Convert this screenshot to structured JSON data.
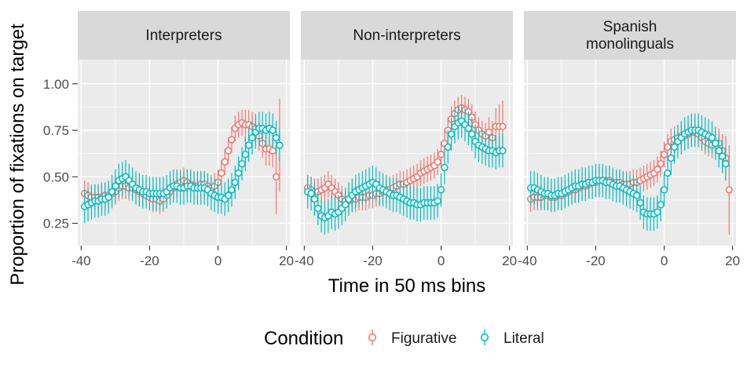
{
  "chart_data": {
    "type": "scatter",
    "facets": [
      "Interpreters",
      "Non-interpreters",
      "Spanish\nmonolinguals"
    ],
    "xlabel": "Time in 50 ms bins",
    "ylabel": "Proportion of fixations on target",
    "xlim": [
      -41,
      21
    ],
    "ylim": [
      0.13,
      1.13
    ],
    "xticks": [
      -40,
      -20,
      0,
      20
    ],
    "yticks": [
      0.25,
      0.5,
      0.75,
      1.0
    ],
    "ytick_labels": [
      "0.25",
      "0.50",
      "0.75",
      "1.00"
    ],
    "grid": true,
    "legend": {
      "title": "Condition",
      "position": "bottom",
      "entries": [
        "Figurative",
        "Literal"
      ]
    },
    "colors": {
      "Figurative": "#F8766D",
      "Literal": "#00BFC4"
    },
    "series": [
      {
        "name": "Figurative",
        "facet": "Interpreters",
        "x": [
          -39,
          -38,
          -37,
          -36,
          -35,
          -34,
          -33,
          -32,
          -31,
          -30,
          -29,
          -28,
          -27,
          -26,
          -25,
          -24,
          -23,
          -22,
          -21,
          -20,
          -19,
          -18,
          -17,
          -16,
          -15,
          -14,
          -13,
          -12,
          -11,
          -10,
          -9,
          -8,
          -7,
          -6,
          -5,
          -4,
          -3,
          -2,
          -1,
          0,
          1,
          2,
          3,
          4,
          5,
          6,
          7,
          8,
          9,
          10,
          11,
          12,
          13,
          14,
          15,
          16,
          17,
          18
        ],
        "y": [
          0.41,
          0.4,
          0.39,
          0.39,
          0.39,
          0.39,
          0.4,
          0.4,
          0.41,
          0.42,
          0.44,
          0.45,
          0.45,
          0.44,
          0.44,
          0.43,
          0.42,
          0.41,
          0.4,
          0.39,
          0.38,
          0.38,
          0.37,
          0.38,
          0.4,
          0.42,
          0.44,
          0.46,
          0.47,
          0.48,
          0.47,
          0.46,
          0.45,
          0.45,
          0.46,
          0.46,
          0.45,
          0.44,
          0.45,
          0.47,
          0.52,
          0.58,
          0.64,
          0.7,
          0.76,
          0.78,
          0.79,
          0.78,
          0.78,
          0.77,
          0.76,
          0.72,
          0.68,
          0.65,
          0.65,
          0.64,
          0.5,
          0.67
        ],
        "err": [
          0.07,
          0.07,
          0.07,
          0.07,
          0.07,
          0.07,
          0.07,
          0.07,
          0.07,
          0.07,
          0.07,
          0.07,
          0.07,
          0.07,
          0.07,
          0.07,
          0.07,
          0.07,
          0.07,
          0.07,
          0.07,
          0.07,
          0.07,
          0.07,
          0.07,
          0.07,
          0.07,
          0.07,
          0.07,
          0.07,
          0.07,
          0.07,
          0.07,
          0.07,
          0.07,
          0.07,
          0.07,
          0.07,
          0.07,
          0.07,
          0.07,
          0.07,
          0.07,
          0.07,
          0.07,
          0.07,
          0.07,
          0.08,
          0.08,
          0.08,
          0.08,
          0.08,
          0.08,
          0.09,
          0.09,
          0.09,
          0.2,
          0.25
        ]
      },
      {
        "name": "Literal",
        "facet": "Interpreters",
        "x": [
          -39,
          -38,
          -37,
          -36,
          -35,
          -34,
          -33,
          -32,
          -31,
          -30,
          -29,
          -28,
          -27,
          -26,
          -25,
          -24,
          -23,
          -22,
          -21,
          -20,
          -19,
          -18,
          -17,
          -16,
          -15,
          -14,
          -13,
          -12,
          -11,
          -10,
          -9,
          -8,
          -7,
          -6,
          -5,
          -4,
          -3,
          -2,
          -1,
          0,
          1,
          2,
          3,
          4,
          5,
          6,
          7,
          8,
          9,
          10,
          11,
          12,
          13,
          14,
          15,
          16,
          17,
          18
        ],
        "y": [
          0.34,
          0.35,
          0.36,
          0.37,
          0.37,
          0.38,
          0.38,
          0.39,
          0.42,
          0.45,
          0.48,
          0.49,
          0.5,
          0.48,
          0.46,
          0.44,
          0.43,
          0.42,
          0.42,
          0.41,
          0.41,
          0.41,
          0.41,
          0.41,
          0.42,
          0.44,
          0.45,
          0.45,
          0.44,
          0.44,
          0.45,
          0.45,
          0.44,
          0.44,
          0.44,
          0.44,
          0.43,
          0.41,
          0.4,
          0.39,
          0.39,
          0.38,
          0.4,
          0.43,
          0.47,
          0.52,
          0.57,
          0.62,
          0.67,
          0.71,
          0.74,
          0.76,
          0.76,
          0.75,
          0.76,
          0.75,
          0.71,
          0.67
        ],
        "err": [
          0.09,
          0.09,
          0.09,
          0.09,
          0.09,
          0.09,
          0.09,
          0.09,
          0.09,
          0.09,
          0.09,
          0.09,
          0.09,
          0.09,
          0.09,
          0.09,
          0.09,
          0.09,
          0.09,
          0.09,
          0.09,
          0.09,
          0.09,
          0.09,
          0.09,
          0.09,
          0.09,
          0.09,
          0.09,
          0.09,
          0.09,
          0.09,
          0.09,
          0.09,
          0.09,
          0.09,
          0.09,
          0.09,
          0.09,
          0.09,
          0.09,
          0.09,
          0.09,
          0.09,
          0.09,
          0.09,
          0.09,
          0.09,
          0.09,
          0.09,
          0.09,
          0.09,
          0.09,
          0.09,
          0.09,
          0.09,
          0.09,
          0.09
        ]
      },
      {
        "name": "Figurative",
        "facet": "Non-interpreters",
        "x": [
          -39,
          -38,
          -37,
          -36,
          -35,
          -34,
          -33,
          -32,
          -31,
          -30,
          -29,
          -28,
          -27,
          -26,
          -25,
          -24,
          -23,
          -22,
          -21,
          -20,
          -19,
          -18,
          -17,
          -16,
          -15,
          -14,
          -13,
          -12,
          -11,
          -10,
          -9,
          -8,
          -7,
          -6,
          -5,
          -4,
          -3,
          -2,
          -1,
          0,
          1,
          2,
          3,
          4,
          5,
          6,
          7,
          8,
          9,
          10,
          11,
          12,
          13,
          14,
          15,
          16,
          17,
          18
        ],
        "y": [
          0.44,
          0.43,
          0.42,
          0.42,
          0.43,
          0.44,
          0.46,
          0.44,
          0.42,
          0.4,
          0.38,
          0.37,
          0.37,
          0.38,
          0.38,
          0.39,
          0.39,
          0.39,
          0.4,
          0.4,
          0.41,
          0.41,
          0.42,
          0.43,
          0.43,
          0.44,
          0.45,
          0.46,
          0.46,
          0.47,
          0.48,
          0.49,
          0.5,
          0.52,
          0.53,
          0.54,
          0.55,
          0.56,
          0.58,
          0.62,
          0.68,
          0.75,
          0.81,
          0.84,
          0.86,
          0.87,
          0.86,
          0.85,
          0.82,
          0.78,
          0.75,
          0.73,
          0.72,
          0.74,
          0.71,
          0.77,
          0.77,
          0.77
        ],
        "err": [
          0.07,
          0.07,
          0.07,
          0.07,
          0.07,
          0.07,
          0.07,
          0.07,
          0.07,
          0.07,
          0.07,
          0.07,
          0.07,
          0.07,
          0.07,
          0.07,
          0.07,
          0.07,
          0.07,
          0.07,
          0.07,
          0.07,
          0.07,
          0.07,
          0.07,
          0.07,
          0.07,
          0.07,
          0.07,
          0.07,
          0.07,
          0.07,
          0.07,
          0.07,
          0.07,
          0.07,
          0.07,
          0.07,
          0.07,
          0.07,
          0.07,
          0.07,
          0.07,
          0.07,
          0.07,
          0.07,
          0.07,
          0.07,
          0.07,
          0.07,
          0.07,
          0.07,
          0.07,
          0.08,
          0.09,
          0.1,
          0.12,
          0.14
        ]
      },
      {
        "name": "Literal",
        "facet": "Non-interpreters",
        "x": [
          -39,
          -38,
          -37,
          -36,
          -35,
          -34,
          -33,
          -32,
          -31,
          -30,
          -29,
          -28,
          -27,
          -26,
          -25,
          -24,
          -23,
          -22,
          -21,
          -20,
          -19,
          -18,
          -17,
          -16,
          -15,
          -14,
          -13,
          -12,
          -11,
          -10,
          -9,
          -8,
          -7,
          -6,
          -5,
          -4,
          -3,
          -2,
          -1,
          0,
          1,
          2,
          3,
          4,
          5,
          6,
          7,
          8,
          9,
          10,
          11,
          12,
          13,
          14,
          15,
          16,
          17,
          18
        ],
        "y": [
          0.42,
          0.41,
          0.38,
          0.33,
          0.29,
          0.28,
          0.29,
          0.31,
          0.3,
          0.31,
          0.33,
          0.35,
          0.38,
          0.4,
          0.42,
          0.43,
          0.44,
          0.45,
          0.46,
          0.47,
          0.46,
          0.44,
          0.43,
          0.42,
          0.41,
          0.4,
          0.4,
          0.39,
          0.38,
          0.37,
          0.36,
          0.36,
          0.35,
          0.35,
          0.36,
          0.36,
          0.36,
          0.36,
          0.37,
          0.43,
          0.55,
          0.66,
          0.73,
          0.77,
          0.79,
          0.8,
          0.78,
          0.76,
          0.73,
          0.69,
          0.67,
          0.66,
          0.65,
          0.64,
          0.64,
          0.63,
          0.64,
          0.64
        ],
        "err": [
          0.09,
          0.09,
          0.09,
          0.09,
          0.09,
          0.09,
          0.09,
          0.09,
          0.09,
          0.09,
          0.09,
          0.09,
          0.09,
          0.09,
          0.09,
          0.09,
          0.09,
          0.09,
          0.09,
          0.09,
          0.09,
          0.09,
          0.09,
          0.09,
          0.09,
          0.09,
          0.09,
          0.09,
          0.09,
          0.09,
          0.09,
          0.09,
          0.09,
          0.09,
          0.09,
          0.09,
          0.09,
          0.09,
          0.09,
          0.09,
          0.09,
          0.09,
          0.09,
          0.09,
          0.09,
          0.09,
          0.09,
          0.09,
          0.09,
          0.09,
          0.09,
          0.09,
          0.09,
          0.09,
          0.09,
          0.09,
          0.09,
          0.09
        ]
      },
      {
        "name": "Figurative",
        "facet": "Spanish\nmonolinguals",
        "x": [
          -39,
          -38,
          -37,
          -36,
          -35,
          -34,
          -33,
          -32,
          -31,
          -30,
          -29,
          -28,
          -27,
          -26,
          -25,
          -24,
          -23,
          -22,
          -21,
          -20,
          -19,
          -18,
          -17,
          -16,
          -15,
          -14,
          -13,
          -12,
          -11,
          -10,
          -9,
          -8,
          -7,
          -6,
          -5,
          -4,
          -3,
          -2,
          -1,
          0,
          1,
          2,
          3,
          4,
          5,
          6,
          7,
          8,
          9,
          10,
          11,
          12,
          13,
          14,
          15,
          16,
          17,
          18,
          19
        ],
        "y": [
          0.38,
          0.39,
          0.39,
          0.39,
          0.4,
          0.4,
          0.39,
          0.39,
          0.4,
          0.4,
          0.41,
          0.42,
          0.43,
          0.43,
          0.44,
          0.45,
          0.45,
          0.46,
          0.47,
          0.47,
          0.48,
          0.48,
          0.48,
          0.48,
          0.47,
          0.47,
          0.47,
          0.46,
          0.46,
          0.46,
          0.47,
          0.47,
          0.48,
          0.49,
          0.5,
          0.51,
          0.52,
          0.54,
          0.57,
          0.62,
          0.66,
          0.69,
          0.7,
          0.71,
          0.72,
          0.72,
          0.73,
          0.74,
          0.74,
          0.73,
          0.71,
          0.69,
          0.68,
          0.67,
          0.68,
          0.68,
          0.64,
          0.6,
          0.43
        ],
        "err": [
          0.07,
          0.07,
          0.07,
          0.07,
          0.07,
          0.07,
          0.07,
          0.07,
          0.07,
          0.07,
          0.07,
          0.07,
          0.07,
          0.07,
          0.07,
          0.07,
          0.07,
          0.07,
          0.07,
          0.07,
          0.07,
          0.07,
          0.07,
          0.07,
          0.07,
          0.07,
          0.07,
          0.07,
          0.07,
          0.07,
          0.07,
          0.07,
          0.07,
          0.07,
          0.07,
          0.07,
          0.07,
          0.07,
          0.07,
          0.07,
          0.07,
          0.07,
          0.07,
          0.07,
          0.07,
          0.07,
          0.07,
          0.07,
          0.07,
          0.07,
          0.07,
          0.07,
          0.07,
          0.07,
          0.07,
          0.08,
          0.09,
          0.12,
          0.24
        ]
      },
      {
        "name": "Literal",
        "facet": "Spanish\nmonolinguals",
        "x": [
          -39,
          -38,
          -37,
          -36,
          -35,
          -34,
          -33,
          -32,
          -31,
          -30,
          -29,
          -28,
          -27,
          -26,
          -25,
          -24,
          -23,
          -22,
          -21,
          -20,
          -19,
          -18,
          -17,
          -16,
          -15,
          -14,
          -13,
          -12,
          -11,
          -10,
          -9,
          -8,
          -7,
          -6,
          -5,
          -4,
          -3,
          -2,
          -1,
          0,
          1,
          2,
          3,
          4,
          5,
          6,
          7,
          8,
          9,
          10,
          11,
          12,
          13,
          14,
          15,
          16,
          17,
          18
        ],
        "y": [
          0.44,
          0.44,
          0.43,
          0.42,
          0.41,
          0.41,
          0.4,
          0.4,
          0.41,
          0.41,
          0.42,
          0.43,
          0.44,
          0.45,
          0.45,
          0.46,
          0.46,
          0.47,
          0.47,
          0.48,
          0.48,
          0.48,
          0.47,
          0.47,
          0.46,
          0.45,
          0.45,
          0.44,
          0.43,
          0.42,
          0.41,
          0.4,
          0.36,
          0.31,
          0.3,
          0.3,
          0.3,
          0.31,
          0.35,
          0.43,
          0.52,
          0.6,
          0.66,
          0.69,
          0.71,
          0.73,
          0.74,
          0.75,
          0.75,
          0.75,
          0.74,
          0.73,
          0.72,
          0.71,
          0.68,
          0.64,
          0.61,
          0.57
        ],
        "err": [
          0.09,
          0.09,
          0.09,
          0.09,
          0.09,
          0.09,
          0.09,
          0.09,
          0.09,
          0.09,
          0.09,
          0.09,
          0.09,
          0.09,
          0.09,
          0.09,
          0.09,
          0.09,
          0.09,
          0.09,
          0.09,
          0.09,
          0.09,
          0.09,
          0.09,
          0.09,
          0.09,
          0.09,
          0.09,
          0.09,
          0.09,
          0.09,
          0.09,
          0.09,
          0.09,
          0.09,
          0.09,
          0.09,
          0.09,
          0.09,
          0.09,
          0.09,
          0.09,
          0.09,
          0.09,
          0.09,
          0.09,
          0.09,
          0.09,
          0.09,
          0.09,
          0.09,
          0.09,
          0.09,
          0.09,
          0.09,
          0.09,
          0.09
        ]
      }
    ]
  }
}
